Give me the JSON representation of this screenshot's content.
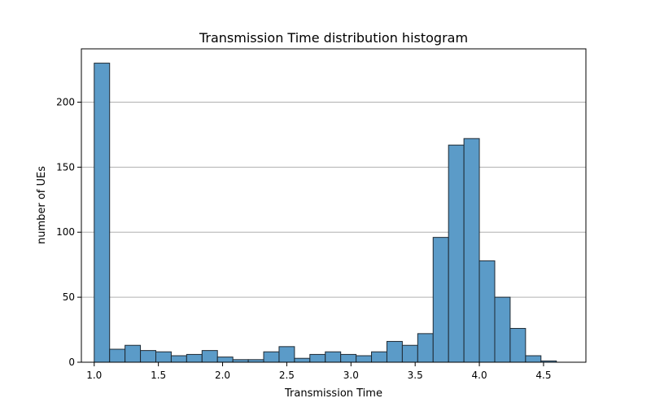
{
  "chart_data": {
    "type": "bar",
    "title": "Transmission Time distribution histogram",
    "xlabel": "Transmission Time",
    "ylabel": "number of UEs",
    "xlim": [
      0.9,
      4.83
    ],
    "ylim": [
      0,
      241
    ],
    "xticks": [
      1.0,
      1.5,
      2.0,
      2.5,
      3.0,
      3.5,
      4.0,
      4.5
    ],
    "xtick_labels": [
      "1.0",
      "1.5",
      "2.0",
      "2.5",
      "3.0",
      "3.5",
      "4.0",
      "4.5"
    ],
    "yticks": [
      0,
      50,
      100,
      150,
      200
    ],
    "ytick_labels": [
      "0",
      "50",
      "100",
      "150",
      "200"
    ],
    "grid": "y",
    "bar_color": "#5b9bc8",
    "edge_color": "#1f2a33",
    "bins": [
      {
        "x0": 1.0,
        "x1": 1.12,
        "count": 230
      },
      {
        "x0": 1.12,
        "x1": 1.24,
        "count": 10
      },
      {
        "x0": 1.24,
        "x1": 1.36,
        "count": 13
      },
      {
        "x0": 1.36,
        "x1": 1.48,
        "count": 9
      },
      {
        "x0": 1.48,
        "x1": 1.6,
        "count": 8
      },
      {
        "x0": 1.6,
        "x1": 1.72,
        "count": 5
      },
      {
        "x0": 1.72,
        "x1": 1.84,
        "count": 6
      },
      {
        "x0": 1.84,
        "x1": 1.96,
        "count": 9
      },
      {
        "x0": 1.96,
        "x1": 2.08,
        "count": 4
      },
      {
        "x0": 2.08,
        "x1": 2.2,
        "count": 2
      },
      {
        "x0": 2.2,
        "x1": 2.32,
        "count": 2
      },
      {
        "x0": 2.32,
        "x1": 2.44,
        "count": 8
      },
      {
        "x0": 2.44,
        "x1": 2.56,
        "count": 12
      },
      {
        "x0": 2.56,
        "x1": 2.68,
        "count": 3
      },
      {
        "x0": 2.68,
        "x1": 2.8,
        "count": 6
      },
      {
        "x0": 2.8,
        "x1": 2.92,
        "count": 8
      },
      {
        "x0": 2.92,
        "x1": 3.04,
        "count": 6
      },
      {
        "x0": 3.04,
        "x1": 3.16,
        "count": 5
      },
      {
        "x0": 3.16,
        "x1": 3.28,
        "count": 8
      },
      {
        "x0": 3.28,
        "x1": 3.4,
        "count": 16
      },
      {
        "x0": 3.4,
        "x1": 3.52,
        "count": 13
      },
      {
        "x0": 3.52,
        "x1": 3.64,
        "count": 22
      },
      {
        "x0": 3.64,
        "x1": 3.76,
        "count": 96
      },
      {
        "x0": 3.76,
        "x1": 3.88,
        "count": 167
      },
      {
        "x0": 3.88,
        "x1": 4.0,
        "count": 172
      },
      {
        "x0": 4.0,
        "x1": 4.12,
        "count": 78
      },
      {
        "x0": 4.12,
        "x1": 4.24,
        "count": 50
      },
      {
        "x0": 4.24,
        "x1": 4.36,
        "count": 26
      },
      {
        "x0": 4.36,
        "x1": 4.48,
        "count": 5
      },
      {
        "x0": 4.48,
        "x1": 4.6,
        "count": 1
      }
    ]
  }
}
